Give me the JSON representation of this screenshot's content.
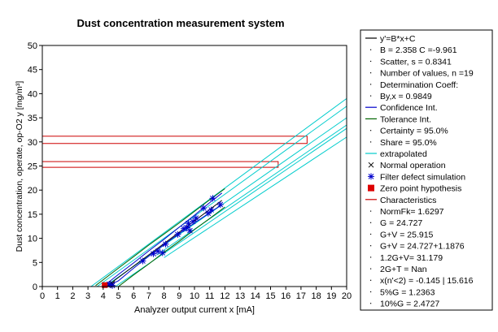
{
  "chart_data": {
    "type": "scatter",
    "title": "Dust concentration measurement system",
    "xlabel": "Analyzer output current x [mA]",
    "ylabel": "Dust concentration, operate, op-O2 y [mg/m³]",
    "xlim": [
      0,
      20
    ],
    "ylim": [
      0,
      50
    ],
    "x_ticks": [
      0,
      1,
      2,
      3,
      4,
      5,
      6,
      7,
      8,
      9,
      10,
      11,
      12,
      13,
      14,
      15,
      16,
      17,
      18,
      19,
      20
    ],
    "y_ticks": [
      0,
      5,
      10,
      15,
      20,
      25,
      30,
      35,
      40,
      45,
      50
    ],
    "grid": false,
    "legend_position": "right",
    "regression": {
      "B": 2.358,
      "C": -9.961,
      "x_range": [
        4.2,
        11.8
      ]
    },
    "confidence_band": {
      "x": [
        4.2,
        5.0,
        6.0,
        7.0,
        8.0,
        9.0,
        10.0,
        11.0,
        11.8
      ],
      "lower": [
        -0.9,
        1.2,
        3.8,
        6.3,
        8.7,
        11.0,
        13.2,
        15.3,
        17.0
      ],
      "upper": [
        0.5,
        2.5,
        4.9,
        7.4,
        9.8,
        12.3,
        14.8,
        17.4,
        19.4
      ]
    },
    "tolerance_band": {
      "x": [
        3.5,
        5.0,
        6.0,
        7.0,
        8.0,
        9.0,
        10.0,
        11.0,
        12.0
      ],
      "lower": [
        -3.0,
        0.0,
        2.4,
        4.7,
        7.1,
        9.4,
        11.8,
        14.1,
        16.5
      ],
      "upper": [
        0.2,
        3.8,
        6.2,
        8.6,
        10.9,
        13.2,
        15.6,
        18.0,
        20.3
      ]
    },
    "extrapolated": [
      {
        "x": [
          3.2,
          20
        ],
        "y": [
          0,
          39.0
        ]
      },
      {
        "x": [
          3.6,
          20
        ],
        "y": [
          0,
          37.4
        ]
      },
      {
        "x": [
          4.1,
          20
        ],
        "y": [
          0,
          35.0
        ]
      },
      {
        "x": [
          4.8,
          20
        ],
        "y": [
          0,
          32.8
        ]
      },
      {
        "x": [
          7.5,
          20
        ],
        "y": [
          6.5,
          33.5
        ]
      },
      {
        "x": [
          8.0,
          20
        ],
        "y": [
          6.0,
          31.0
        ]
      }
    ],
    "series": [
      {
        "name": "Normal operation",
        "marker": "x",
        "color": "#000000",
        "points": [
          [
            4.4,
            0.3
          ],
          [
            4.6,
            0.6
          ]
        ]
      },
      {
        "name": "Filter defect simulation",
        "marker": "star",
        "color": "#0000cc",
        "points": [
          [
            6.6,
            5.3
          ],
          [
            7.3,
            6.8
          ],
          [
            7.6,
            7.3
          ],
          [
            7.9,
            7.0
          ],
          [
            8.1,
            8.8
          ],
          [
            8.9,
            10.8
          ],
          [
            9.3,
            12.0
          ],
          [
            9.5,
            12.2
          ],
          [
            9.6,
            13.1
          ],
          [
            9.7,
            11.6
          ],
          [
            9.9,
            13.5
          ],
          [
            10.1,
            14.2
          ],
          [
            10.6,
            16.3
          ],
          [
            10.9,
            15.2
          ],
          [
            11.1,
            15.9
          ],
          [
            11.2,
            18.3
          ],
          [
            11.7,
            17.0
          ],
          [
            4.6,
            0.2
          ],
          [
            4.4,
            0.5
          ]
        ]
      }
    ],
    "zero_point": {
      "x": 4.1,
      "y": 0.3
    },
    "characteristics": [
      {
        "x0": 0,
        "x1": 15.5,
        "y0": 24.727,
        "y1": 25.915
      },
      {
        "x0": 0,
        "x1": 17.4,
        "y0": 29.67,
        "y1": 31.179
      }
    ],
    "colors": {
      "regression": "#000000",
      "confidence": "#0000cc",
      "tolerance": "#006400",
      "extrapolated": "#00cccc",
      "characteristics": "#cc0000",
      "zero_point": "#dd0000"
    },
    "legend": [
      {
        "label": "y'=B*x+C",
        "sym": "line",
        "color": "#000000"
      },
      {
        "label": "B = 2.358     C =-9.961",
        "sym": "dot"
      },
      {
        "label": "Scatter, s = 0.8341",
        "sym": "dot"
      },
      {
        "label": "Number of values, n =19",
        "sym": "dot"
      },
      {
        "label": "Determination Coeff:",
        "sym": "dot"
      },
      {
        "label": "By,x = 0.9849",
        "sym": "dot"
      },
      {
        "label": "Confidence Int.",
        "sym": "line",
        "color": "#0000cc"
      },
      {
        "label": "Tolerance Int.",
        "sym": "line",
        "color": "#006400"
      },
      {
        "label": "Certainty = 95.0%",
        "sym": "dot"
      },
      {
        "label": "Share = 95.0%",
        "sym": "dot"
      },
      {
        "label": "extrapolated",
        "sym": "line",
        "color": "#00cccc"
      },
      {
        "label": "Normal operation",
        "sym": "x",
        "color": "#000000"
      },
      {
        "label": "Filter defect simulation",
        "sym": "star",
        "color": "#0000cc"
      },
      {
        "label": "Zero point hypothesis",
        "sym": "square",
        "color": "#dd0000"
      },
      {
        "label": "Characteristics",
        "sym": "line",
        "color": "#cc0000"
      },
      {
        "label": "NormFk= 1.6297",
        "sym": "dot"
      },
      {
        "label": "G      = 24.727",
        "sym": "dot"
      },
      {
        "label": "G+V    = 25.915",
        "sym": "dot"
      },
      {
        "label": "G+V    = 24.727+1.1876",
        "sym": "dot"
      },
      {
        "label": "1.2G+V= 31.179",
        "sym": "dot"
      },
      {
        "label": "2G+T  =    Nan",
        "sym": "dot"
      },
      {
        "label": "x(n'<2) = -0.145 | 15.616",
        "sym": "dot"
      },
      {
        "label": "5%G  = 1.2363",
        "sym": "dot"
      },
      {
        "label": "10%G = 2.4727",
        "sym": "dot"
      }
    ]
  }
}
